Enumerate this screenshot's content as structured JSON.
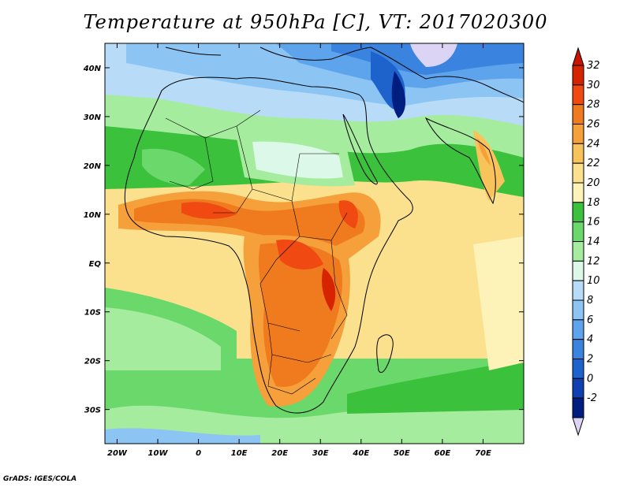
{
  "title": "Temperature at 950hPa [C], VT: 2017020300",
  "credit": "GrADS: IGES/COLA",
  "map": {
    "lon_range": [
      -23,
      80
    ],
    "lat_range": [
      -37,
      45
    ],
    "lat_ticks": [
      {
        "value": 40,
        "label": "40N"
      },
      {
        "value": 30,
        "label": "30N"
      },
      {
        "value": 20,
        "label": "20N"
      },
      {
        "value": 10,
        "label": "10N"
      },
      {
        "value": 0,
        "label": "EQ"
      },
      {
        "value": -10,
        "label": "10S"
      },
      {
        "value": -20,
        "label": "20S"
      },
      {
        "value": -30,
        "label": "30S"
      }
    ],
    "lon_ticks": [
      {
        "value": -20,
        "label": "20W"
      },
      {
        "value": -10,
        "label": "10W"
      },
      {
        "value": 0,
        "label": "0"
      },
      {
        "value": 10,
        "label": "10E"
      },
      {
        "value": 20,
        "label": "20E"
      },
      {
        "value": 30,
        "label": "30E"
      },
      {
        "value": 40,
        "label": "40E"
      },
      {
        "value": 50,
        "label": "50E"
      },
      {
        "value": 60,
        "label": "60E"
      },
      {
        "value": 70,
        "label": "70E"
      }
    ]
  },
  "colorbar": {
    "levels": [
      "32",
      "30",
      "28",
      "26",
      "24",
      "22",
      "20",
      "18",
      "16",
      "14",
      "12",
      "10",
      "8",
      "6",
      "4",
      "2",
      "0",
      "-2"
    ],
    "colors": [
      "#d62400",
      "#f04a12",
      "#f07a1e",
      "#f5a03a",
      "#f8c35a",
      "#fbe08e",
      "#fdf3b8",
      "#3cc13c",
      "#6ad86a",
      "#a6ec9e",
      "#dcf8e8",
      "#b8dcf8",
      "#8cc4f4",
      "#5ea4ec",
      "#3a84e0",
      "#1e62cc",
      "#0e40b0",
      "#001e80"
    ],
    "top_arrow_color": "#c81400",
    "bottom_arrow_color": "#dcd4f4"
  }
}
